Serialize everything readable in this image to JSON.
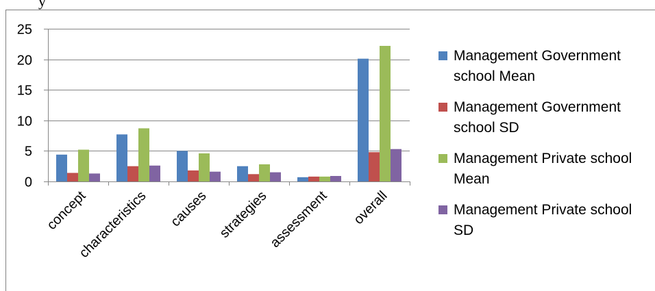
{
  "header_fragment": "y",
  "chart_data": {
    "type": "bar",
    "categories": [
      "concept",
      "characteristics",
      "causes",
      "strategies",
      "assessment",
      "overall"
    ],
    "series": [
      {
        "name": "Management Government school Mean",
        "color": "#4F81BD",
        "values": [
          4.4,
          7.7,
          5.0,
          2.5,
          0.7,
          20.1
        ]
      },
      {
        "name": "Management Government school SD",
        "color": "#C0504D",
        "values": [
          1.4,
          2.5,
          1.8,
          1.2,
          0.8,
          4.8
        ]
      },
      {
        "name": "Management Private school Mean",
        "color": "#9BBB59",
        "values": [
          5.2,
          8.7,
          4.6,
          2.8,
          0.8,
          22.2
        ]
      },
      {
        "name": "Management Private school SD",
        "color": "#8064A2",
        "values": [
          1.3,
          2.6,
          1.6,
          1.5,
          0.9,
          5.3
        ]
      }
    ],
    "ylim": [
      0,
      25
    ],
    "yticks": [
      0,
      5,
      10,
      15,
      20,
      25
    ],
    "grid": true,
    "legend_position": "right",
    "xlabel": "",
    "ylabel": ""
  }
}
